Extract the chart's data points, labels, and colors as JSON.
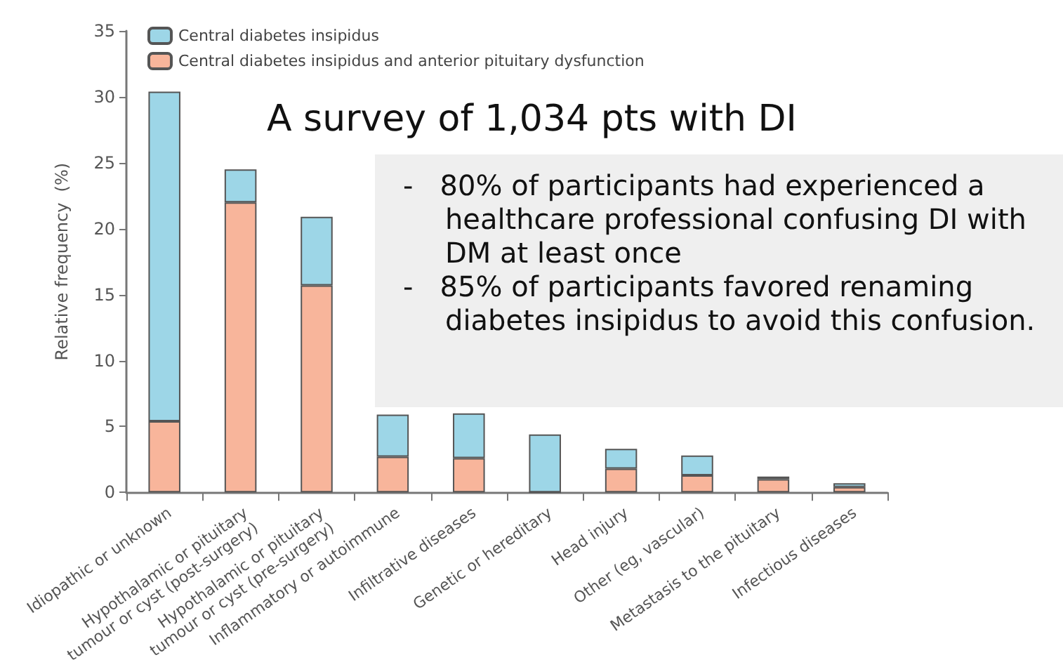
{
  "chart_data": {
    "type": "bar",
    "stacked": true,
    "ylabel": "Relative frequency  (%)",
    "categories": [
      "Idiopathic or unknown",
      "Hypothalamic or pituitary\ntumour or cyst (post-surgery)",
      "Hypothalamic or pituitary\ntumour or cyst (pre-surgery)",
      "Inflammatory or autoimmune",
      "Infiltrative diseases",
      "Genetic or hereditary",
      "Head injury",
      "Other (eg, vascular)",
      "Metastasis to the pituitary",
      "Infectious diseases"
    ],
    "series": [
      {
        "name": "Central diabetes insipidus and anterior pituitary dysfunction",
        "color": "#f8b59b",
        "values": [
          5.4,
          22.0,
          15.7,
          2.7,
          2.6,
          0,
          1.8,
          1.3,
          1.0,
          0.4
        ]
      },
      {
        "name": "Central diabetes insipidus",
        "color": "#9dd6e7",
        "values": [
          25.0,
          2.5,
          5.2,
          3.2,
          3.4,
          4.4,
          1.5,
          1.5,
          0.2,
          0.3
        ]
      }
    ],
    "ylim": [
      0,
      35
    ],
    "yticks": [
      0,
      5,
      10,
      15,
      20,
      25,
      30,
      35
    ],
    "grid": false,
    "legend": "top left",
    "annotations": [
      "A survey of 1,034 pts with DI",
      "- 80% of participants had experienced a healthcare professional confusing DI with DM at least once",
      "- 85% of participants favored renaming diabetes insipidus to avoid this confusion."
    ]
  }
}
